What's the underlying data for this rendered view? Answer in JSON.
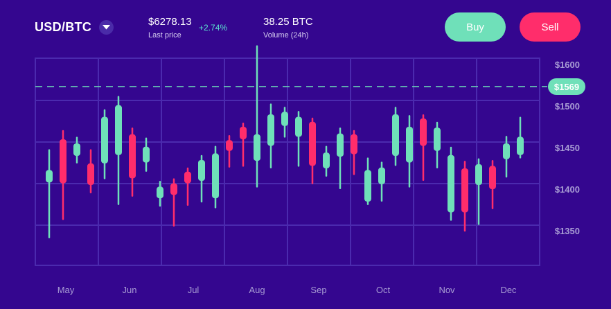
{
  "header": {
    "pair": "USD/BTC",
    "last_price": "$6278.13",
    "last_price_label": "Last price",
    "change": "+2.74%",
    "volume": "38.25 BTC",
    "volume_label": "Volume (24h)",
    "buy_label": "Buy",
    "sell_label": "Sell"
  },
  "colors": {
    "background": "#34068f",
    "grid": "#4b2aae",
    "up": "#6fe0b9",
    "down": "#ff2d6b",
    "axis_text": "#a89cd4",
    "current_line": "#6fe0b9"
  },
  "chart_data": {
    "type": "candlestick",
    "months": [
      "May",
      "Jun",
      "Jul",
      "Aug",
      "Sep",
      "Oct",
      "Nov",
      "Dec"
    ],
    "ylim": [
      1325,
      1600
    ],
    "y_ticks": [
      {
        "value": 1600,
        "label": "$1600"
      },
      {
        "value": 1500,
        "label": "$1500"
      },
      {
        "value": 1450,
        "label": "$1450"
      },
      {
        "value": 1400,
        "label": "$1400"
      },
      {
        "value": 1350,
        "label": "$1350"
      }
    ],
    "current_price": {
      "value": 1569,
      "label": "$1569"
    },
    "candles": [
      {
        "dir": "up",
        "open": 1408,
        "close": 1423,
        "high": 1447,
        "low": 1342
      },
      {
        "dir": "down",
        "open": 1460,
        "close": 1407,
        "high": 1470,
        "low": 1364
      },
      {
        "dir": "up",
        "open": 1440,
        "close": 1455,
        "high": 1462,
        "low": 1432
      },
      {
        "dir": "down",
        "open": 1431,
        "close": 1405,
        "high": 1447,
        "low": 1396
      },
      {
        "dir": "up",
        "open": 1431,
        "close": 1487,
        "high": 1495,
        "low": 1413
      },
      {
        "dir": "up",
        "open": 1441,
        "close": 1501,
        "high": 1511,
        "low": 1382
      },
      {
        "dir": "down",
        "open": 1466,
        "close": 1413,
        "high": 1473,
        "low": 1392
      },
      {
        "dir": "up",
        "open": 1432,
        "close": 1451,
        "high": 1461,
        "low": 1422
      },
      {
        "dir": "up",
        "open": 1389,
        "close": 1403,
        "high": 1409,
        "low": 1380
      },
      {
        "dir": "down",
        "open": 1407,
        "close": 1393,
        "high": 1412,
        "low": 1356
      },
      {
        "dir": "down",
        "open": 1421,
        "close": 1407,
        "high": 1425,
        "low": 1381
      },
      {
        "dir": "up",
        "open": 1410,
        "close": 1435,
        "high": 1440,
        "low": 1385
      },
      {
        "dir": "up",
        "open": 1389,
        "close": 1443,
        "high": 1451,
        "low": 1378
      },
      {
        "dir": "down",
        "open": 1459,
        "close": 1446,
        "high": 1464,
        "low": 1427
      },
      {
        "dir": "down",
        "open": 1475,
        "close": 1460,
        "high": 1479,
        "low": 1428
      },
      {
        "dir": "up",
        "open": 1434,
        "close": 1466,
        "high": 1572,
        "low": 1403
      },
      {
        "dir": "up",
        "open": 1452,
        "close": 1490,
        "high": 1502,
        "low": 1426
      },
      {
        "dir": "up",
        "open": 1476,
        "close": 1493,
        "high": 1498,
        "low": 1463
      },
      {
        "dir": "up",
        "open": 1463,
        "close": 1487,
        "high": 1493,
        "low": 1428
      },
      {
        "dir": "down",
        "open": 1481,
        "close": 1428,
        "high": 1485,
        "low": 1407
      },
      {
        "dir": "up",
        "open": 1425,
        "close": 1444,
        "high": 1451,
        "low": 1416
      },
      {
        "dir": "up",
        "open": 1439,
        "close": 1467,
        "high": 1473,
        "low": 1401
      },
      {
        "dir": "down",
        "open": 1466,
        "close": 1442,
        "high": 1470,
        "low": 1418
      },
      {
        "dir": "up",
        "open": 1385,
        "close": 1423,
        "high": 1437,
        "low": 1382
      },
      {
        "dir": "up",
        "open": 1406,
        "close": 1426,
        "high": 1432,
        "low": 1386
      },
      {
        "dir": "up",
        "open": 1440,
        "close": 1490,
        "high": 1498,
        "low": 1429
      },
      {
        "dir": "up",
        "open": 1432,
        "close": 1475,
        "high": 1488,
        "low": 1403
      },
      {
        "dir": "down",
        "open": 1485,
        "close": 1452,
        "high": 1489,
        "low": 1411
      },
      {
        "dir": "up",
        "open": 1446,
        "close": 1474,
        "high": 1480,
        "low": 1426
      },
      {
        "dir": "up",
        "open": 1372,
        "close": 1441,
        "high": 1450,
        "low": 1363
      },
      {
        "dir": "down",
        "open": 1425,
        "close": 1372,
        "high": 1433,
        "low": 1350
      },
      {
        "dir": "up",
        "open": 1405,
        "close": 1430,
        "high": 1436,
        "low": 1358
      },
      {
        "dir": "down",
        "open": 1428,
        "close": 1400,
        "high": 1434,
        "low": 1377
      },
      {
        "dir": "up",
        "open": 1436,
        "close": 1455,
        "high": 1463,
        "low": 1415
      },
      {
        "dir": "up",
        "open": 1441,
        "close": 1463,
        "high": 1486,
        "low": 1438
      }
    ]
  }
}
